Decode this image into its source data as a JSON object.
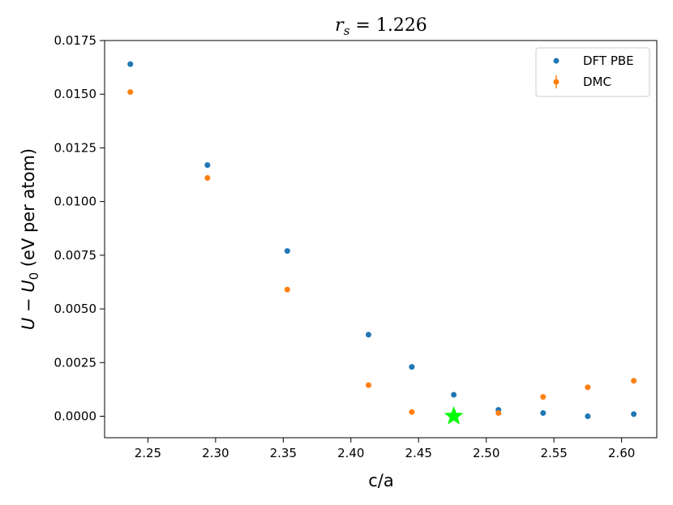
{
  "chart_data": {
    "type": "scatter",
    "title": "r_s = 1.226",
    "title_parts": {
      "var": "r",
      "sub": "s",
      "rest": " = 1.226"
    },
    "xlabel": "c/a",
    "ylabel": "U − U₀ (eV per atom)",
    "ylabel_parts": {
      "u1": "U",
      "minus": " − ",
      "u2": "U",
      "sub": "0",
      "rest": " (eV per atom)"
    },
    "xlim": [
      2.218,
      2.626
    ],
    "ylim": [
      -0.001,
      0.0175
    ],
    "x_ticks": [
      2.25,
      2.3,
      2.35,
      2.4,
      2.45,
      2.5,
      2.55,
      2.6
    ],
    "x_tick_labels": [
      "2.25",
      "2.30",
      "2.35",
      "2.40",
      "2.45",
      "2.50",
      "2.55",
      "2.60"
    ],
    "y_ticks": [
      0.0,
      0.0025,
      0.005,
      0.0075,
      0.01,
      0.0125,
      0.015,
      0.0175
    ],
    "y_tick_labels": [
      "0.0000",
      "0.0025",
      "0.0050",
      "0.0075",
      "0.0100",
      "0.0125",
      "0.0150",
      "0.0175"
    ],
    "legend_position": "top-right",
    "series": [
      {
        "name": "DFT PBE",
        "color": "#1f77b4",
        "x": [
          2.237,
          2.294,
          2.353,
          2.413,
          2.445,
          2.476,
          2.509,
          2.542,
          2.575,
          2.609
        ],
        "y": [
          0.0164,
          0.0117,
          0.0077,
          0.0038,
          0.0023,
          0.001,
          0.0003,
          0.00015,
          0.0,
          0.0001
        ]
      },
      {
        "name": "DMC",
        "color": "#ff7f0e",
        "x": [
          2.237,
          2.294,
          2.353,
          2.413,
          2.445,
          2.509,
          2.542,
          2.575,
          2.609
        ],
        "y": [
          0.0151,
          0.0111,
          0.0059,
          0.00145,
          0.0002,
          0.00015,
          0.0009,
          0.00135,
          0.00165
        ]
      }
    ],
    "marker": {
      "shape": "star",
      "color": "#00ff00",
      "x": 2.476,
      "y": 0.0
    }
  }
}
